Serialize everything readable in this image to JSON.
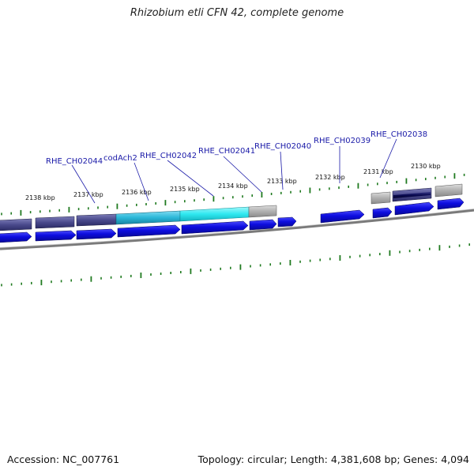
{
  "title": "Rhizobium etli CFN 42, complete genome",
  "footer": {
    "accession": "Accession: NC_007761",
    "topology": "Topology: circular; Length: 4,381,608 bp; Genes: 4,094"
  },
  "colors": {
    "forward_gene": "#0d0ddf",
    "reverse_gene_dark": "#4a4a8c",
    "reverse_gene_cyan_1": "#2ab7d8",
    "reverse_gene_cyan_2": "#2ee8f0",
    "reverse_gene_gray": "#b0b0b0",
    "backbone": "#7a7a7a",
    "tick": "#1f7a1f",
    "label": "#1a1aa8"
  },
  "ticks": [
    {
      "label": "2138 kbp"
    },
    {
      "label": "2137 kbp"
    },
    {
      "label": "2136 kbp"
    },
    {
      "label": "2135 kbp"
    },
    {
      "label": "2134 kbp"
    },
    {
      "label": "2133 kbp"
    },
    {
      "label": "2132 kbp"
    },
    {
      "label": "2131 kbp"
    },
    {
      "label": "2130 kbp"
    }
  ],
  "gene_labels": [
    {
      "name": "RHE_CH02044"
    },
    {
      "name": "codAch2"
    },
    {
      "name": "RHE_CH02042"
    },
    {
      "name": "RHE_CH02041"
    },
    {
      "name": "RHE_CH02040"
    },
    {
      "name": "RHE_CH02039"
    },
    {
      "name": "RHE_CH02038"
    }
  ]
}
